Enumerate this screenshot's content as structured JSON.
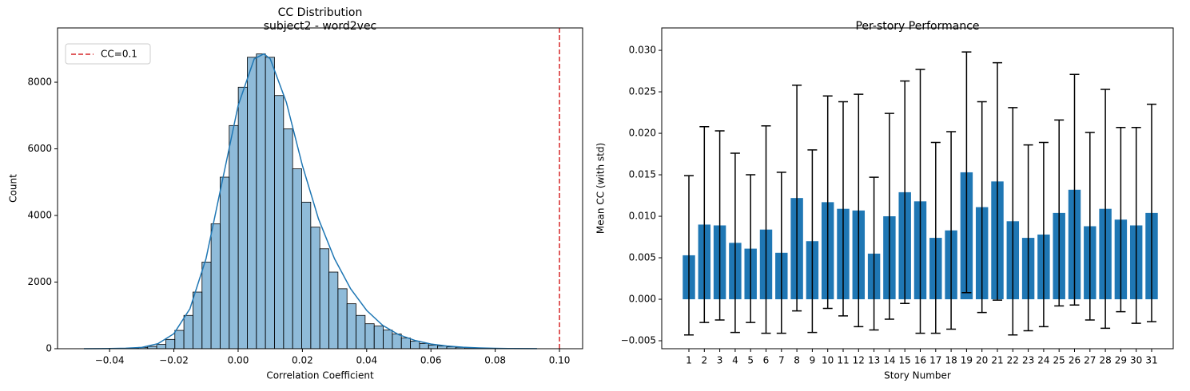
{
  "chart_data": [
    {
      "type": "histogram",
      "title": "CC Distribution",
      "subtitle": "subject2 - word2vec",
      "x_label": "Correlation Coefficient",
      "y_label": "Count",
      "color": "#1f77b4",
      "bins": [
        -0.0479,
        -0.04508,
        -0.04226,
        -0.03944,
        -0.03662,
        -0.0338,
        -0.03098,
        -0.02816,
        -0.02534,
        -0.02252,
        -0.0197,
        -0.01688,
        -0.01406,
        -0.01124,
        -0.00842,
        -0.0056,
        -0.00278,
        4e-05,
        0.00286,
        0.00568,
        0.0085,
        0.01132,
        0.01414,
        0.01696,
        0.01978,
        0.0226,
        0.02542,
        0.02824,
        0.03106,
        0.03388,
        0.0367,
        0.03952,
        0.04234,
        0.04516,
        0.04798,
        0.0508,
        0.05362,
        0.05644,
        0.05926,
        0.06208,
        0.0649,
        0.06772,
        0.07054,
        0.07336,
        0.07618,
        0.079,
        0.08182,
        0.08464,
        0.08746,
        0.09028,
        0.0931
      ],
      "values": [
        2,
        3,
        5,
        8,
        12,
        20,
        40,
        70,
        130,
        280,
        550,
        1000,
        1700,
        2600,
        3750,
        5150,
        6700,
        7850,
        8750,
        8850,
        8750,
        7600,
        6600,
        5400,
        4400,
        3650,
        3000,
        2300,
        1800,
        1350,
        1000,
        750,
        680,
        560,
        440,
        320,
        230,
        160,
        110,
        80,
        55,
        40,
        28,
        20,
        14,
        10,
        7,
        4,
        3,
        2
      ],
      "kde": {
        "x": [
          -0.048,
          -0.04,
          -0.035,
          -0.03,
          -0.025,
          -0.02,
          -0.015,
          -0.01,
          -0.005,
          0,
          0.005,
          0.008,
          0.01,
          0.015,
          0.02,
          0.025,
          0.03,
          0.035,
          0.04,
          0.045,
          0.05,
          0.055,
          0.06,
          0.065,
          0.07,
          0.075,
          0.08,
          0.085,
          0.093
        ],
        "values": [
          0,
          5,
          15,
          40,
          150,
          450,
          1200,
          2700,
          5000,
          7300,
          8700,
          8850,
          8700,
          7400,
          5500,
          3900,
          2700,
          1800,
          1150,
          700,
          420,
          250,
          140,
          80,
          45,
          25,
          12,
          6,
          2
        ]
      },
      "vline": {
        "x": 0.1,
        "name": "CC=0.1",
        "color": "#d62728"
      },
      "legend": "upper left",
      "xlim": [
        -0.0562,
        0.1072
      ],
      "xticks": [
        {
          "value": -0.04,
          "label": "−0.04"
        },
        {
          "value": -0.02,
          "label": "−0.02"
        },
        {
          "value": 0,
          "label": "0.00"
        },
        {
          "value": 0.02,
          "label": "0.02"
        },
        {
          "value": 0.04,
          "label": "0.04"
        },
        {
          "value": 0.06,
          "label": "0.06"
        },
        {
          "value": 0.08,
          "label": "0.08"
        },
        {
          "value": 0.1,
          "label": "0.10"
        }
      ],
      "ylim": [
        0,
        9630
      ],
      "yticks": [
        0,
        2000,
        4000,
        6000,
        8000
      ]
    },
    {
      "type": "bar",
      "title": "Per-story Performance",
      "x_label": "Story Number",
      "y_label": "Mean CC (with std)",
      "color": "#1f77b4",
      "categories": [
        "1",
        "2",
        "3",
        "4",
        "5",
        "6",
        "7",
        "8",
        "9",
        "10",
        "11",
        "12",
        "13",
        "14",
        "15",
        "16",
        "17",
        "18",
        "19",
        "20",
        "21",
        "22",
        "23",
        "24",
        "25",
        "26",
        "27",
        "28",
        "29",
        "30",
        "31"
      ],
      "values": [
        0.0053,
        0.009,
        0.0089,
        0.0068,
        0.0061,
        0.0084,
        0.0056,
        0.0122,
        0.007,
        0.0117,
        0.0109,
        0.0107,
        0.0055,
        0.01,
        0.0129,
        0.0118,
        0.0074,
        0.0083,
        0.0153,
        0.0111,
        0.0142,
        0.0094,
        0.0074,
        0.0078,
        0.0104,
        0.0132,
        0.0088,
        0.0109,
        0.0096,
        0.0089,
        0.0104
      ],
      "errors": [
        0.0096,
        0.0118,
        0.0114,
        0.0108,
        0.0089,
        0.0125,
        0.0097,
        0.0136,
        0.011,
        0.0128,
        0.0129,
        0.014,
        0.0092,
        0.0124,
        0.0134,
        0.0159,
        0.0115,
        0.0119,
        0.0145,
        0.0127,
        0.0143,
        0.0137,
        0.0112,
        0.0111,
        0.0112,
        0.0139,
        0.0113,
        0.0144,
        0.0111,
        0.0118,
        0.0131
      ],
      "ylim": [
        -0.00596,
        0.0327
      ],
      "yticks": [
        {
          "value": -0.005,
          "label": "−0.005"
        },
        {
          "value": 0,
          "label": "0.000"
        },
        {
          "value": 0.005,
          "label": "0.005"
        },
        {
          "value": 0.01,
          "label": "0.010"
        },
        {
          "value": 0.015,
          "label": "0.015"
        },
        {
          "value": 0.02,
          "label": "0.020"
        },
        {
          "value": 0.025,
          "label": "0.025"
        },
        {
          "value": 0.03,
          "label": "0.030"
        }
      ]
    }
  ]
}
